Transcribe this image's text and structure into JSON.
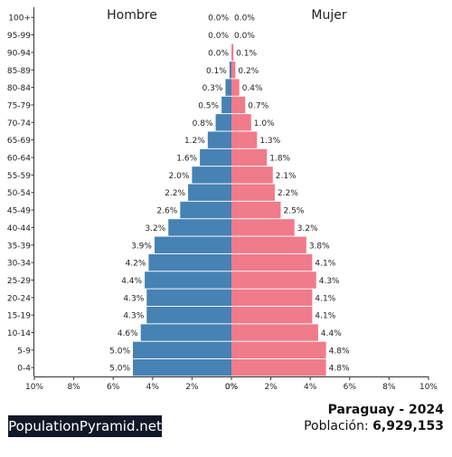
{
  "brand": "PopulationPyramid.net",
  "country_year": "Paraguay - 2024",
  "population_label": "Población:",
  "population_value": "6,929,153",
  "chart_data": {
    "type": "bar",
    "orientation": "horizontal-population-pyramid",
    "categories": [
      "100+",
      "95-99",
      "90-94",
      "85-89",
      "80-84",
      "75-79",
      "70-74",
      "65-69",
      "60-64",
      "55-59",
      "50-54",
      "45-49",
      "40-44",
      "35-39",
      "30-34",
      "25-29",
      "20-24",
      "15-19",
      "10-14",
      "5-9",
      "0-4"
    ],
    "series": [
      {
        "name": "Hombre",
        "color": "#4682b4",
        "values": [
          0.0,
          0.0,
          0.0,
          0.1,
          0.3,
          0.5,
          0.8,
          1.2,
          1.6,
          2.0,
          2.2,
          2.6,
          3.2,
          3.9,
          4.2,
          4.4,
          4.3,
          4.3,
          4.6,
          5.0,
          5.0
        ]
      },
      {
        "name": "Mujer",
        "color": "#f07b8a",
        "values": [
          0.0,
          0.0,
          0.1,
          0.2,
          0.4,
          0.7,
          1.0,
          1.3,
          1.8,
          2.1,
          2.2,
          2.5,
          3.2,
          3.8,
          4.1,
          4.3,
          4.1,
          4.1,
          4.4,
          4.8,
          4.8
        ]
      }
    ],
    "xlim": [
      -10,
      10
    ],
    "x_ticks": [
      "10%",
      "8%",
      "6%",
      "4%",
      "2%",
      "0%",
      "0%",
      "2%",
      "4%",
      "6%",
      "8%",
      "10%"
    ],
    "grid": false
  }
}
